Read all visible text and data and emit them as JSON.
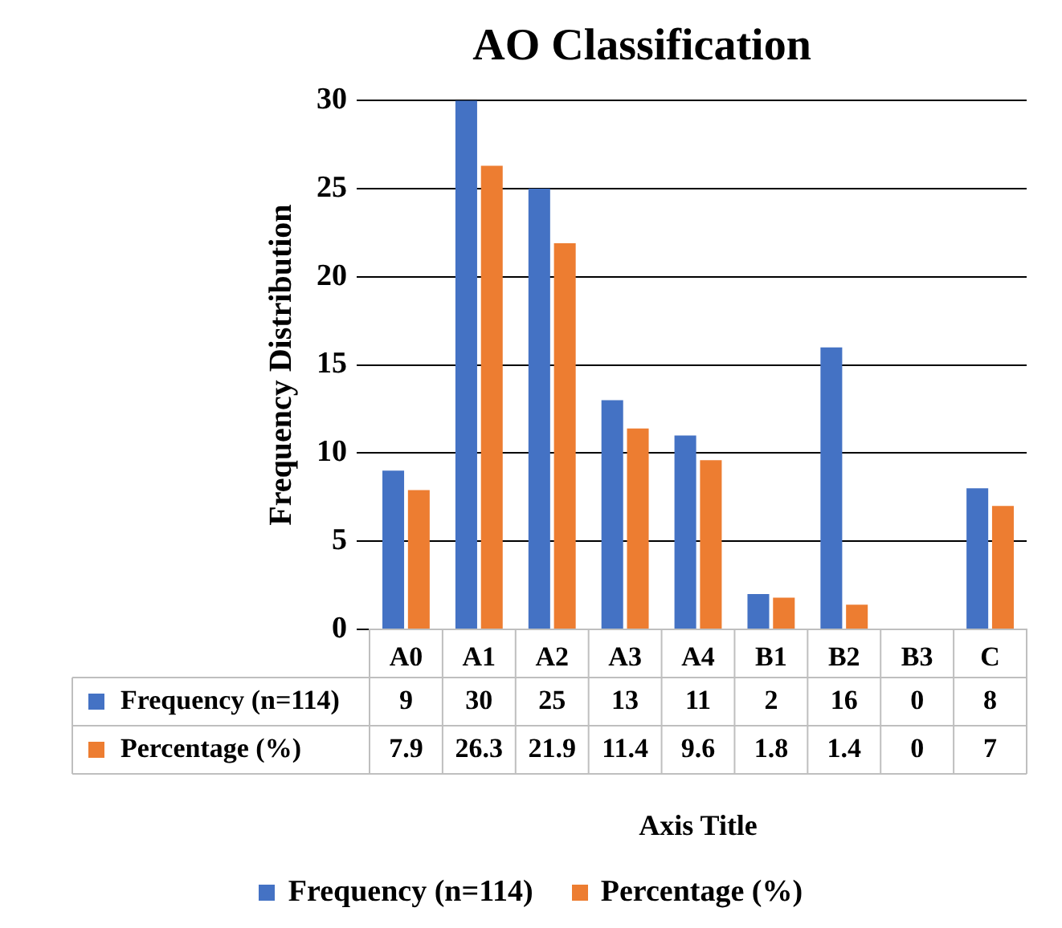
{
  "chart_data": {
    "type": "bar",
    "title": "AO Classification",
    "xlabel": "Axis Title",
    "ylabel": "Frequency Distribution",
    "categories": [
      "A0",
      "A1",
      "A2",
      "A3",
      "A4",
      "B1",
      "B2",
      "B3",
      "C"
    ],
    "series": [
      {
        "name": "Frequency (n=114)",
        "color": "#4472c4",
        "values": [
          9,
          30,
          25,
          13,
          11,
          2,
          16,
          0,
          8
        ]
      },
      {
        "name": "Percentage (%)",
        "color": "#ed7d31",
        "values": [
          7.9,
          26.3,
          21.9,
          11.4,
          9.6,
          1.8,
          1.4,
          0,
          7
        ]
      }
    ],
    "ylim": [
      0,
      30
    ],
    "yticks": [
      0,
      5,
      10,
      15,
      20,
      25,
      30
    ],
    "grid": "y",
    "legend": "bottom",
    "data_labels": true
  }
}
